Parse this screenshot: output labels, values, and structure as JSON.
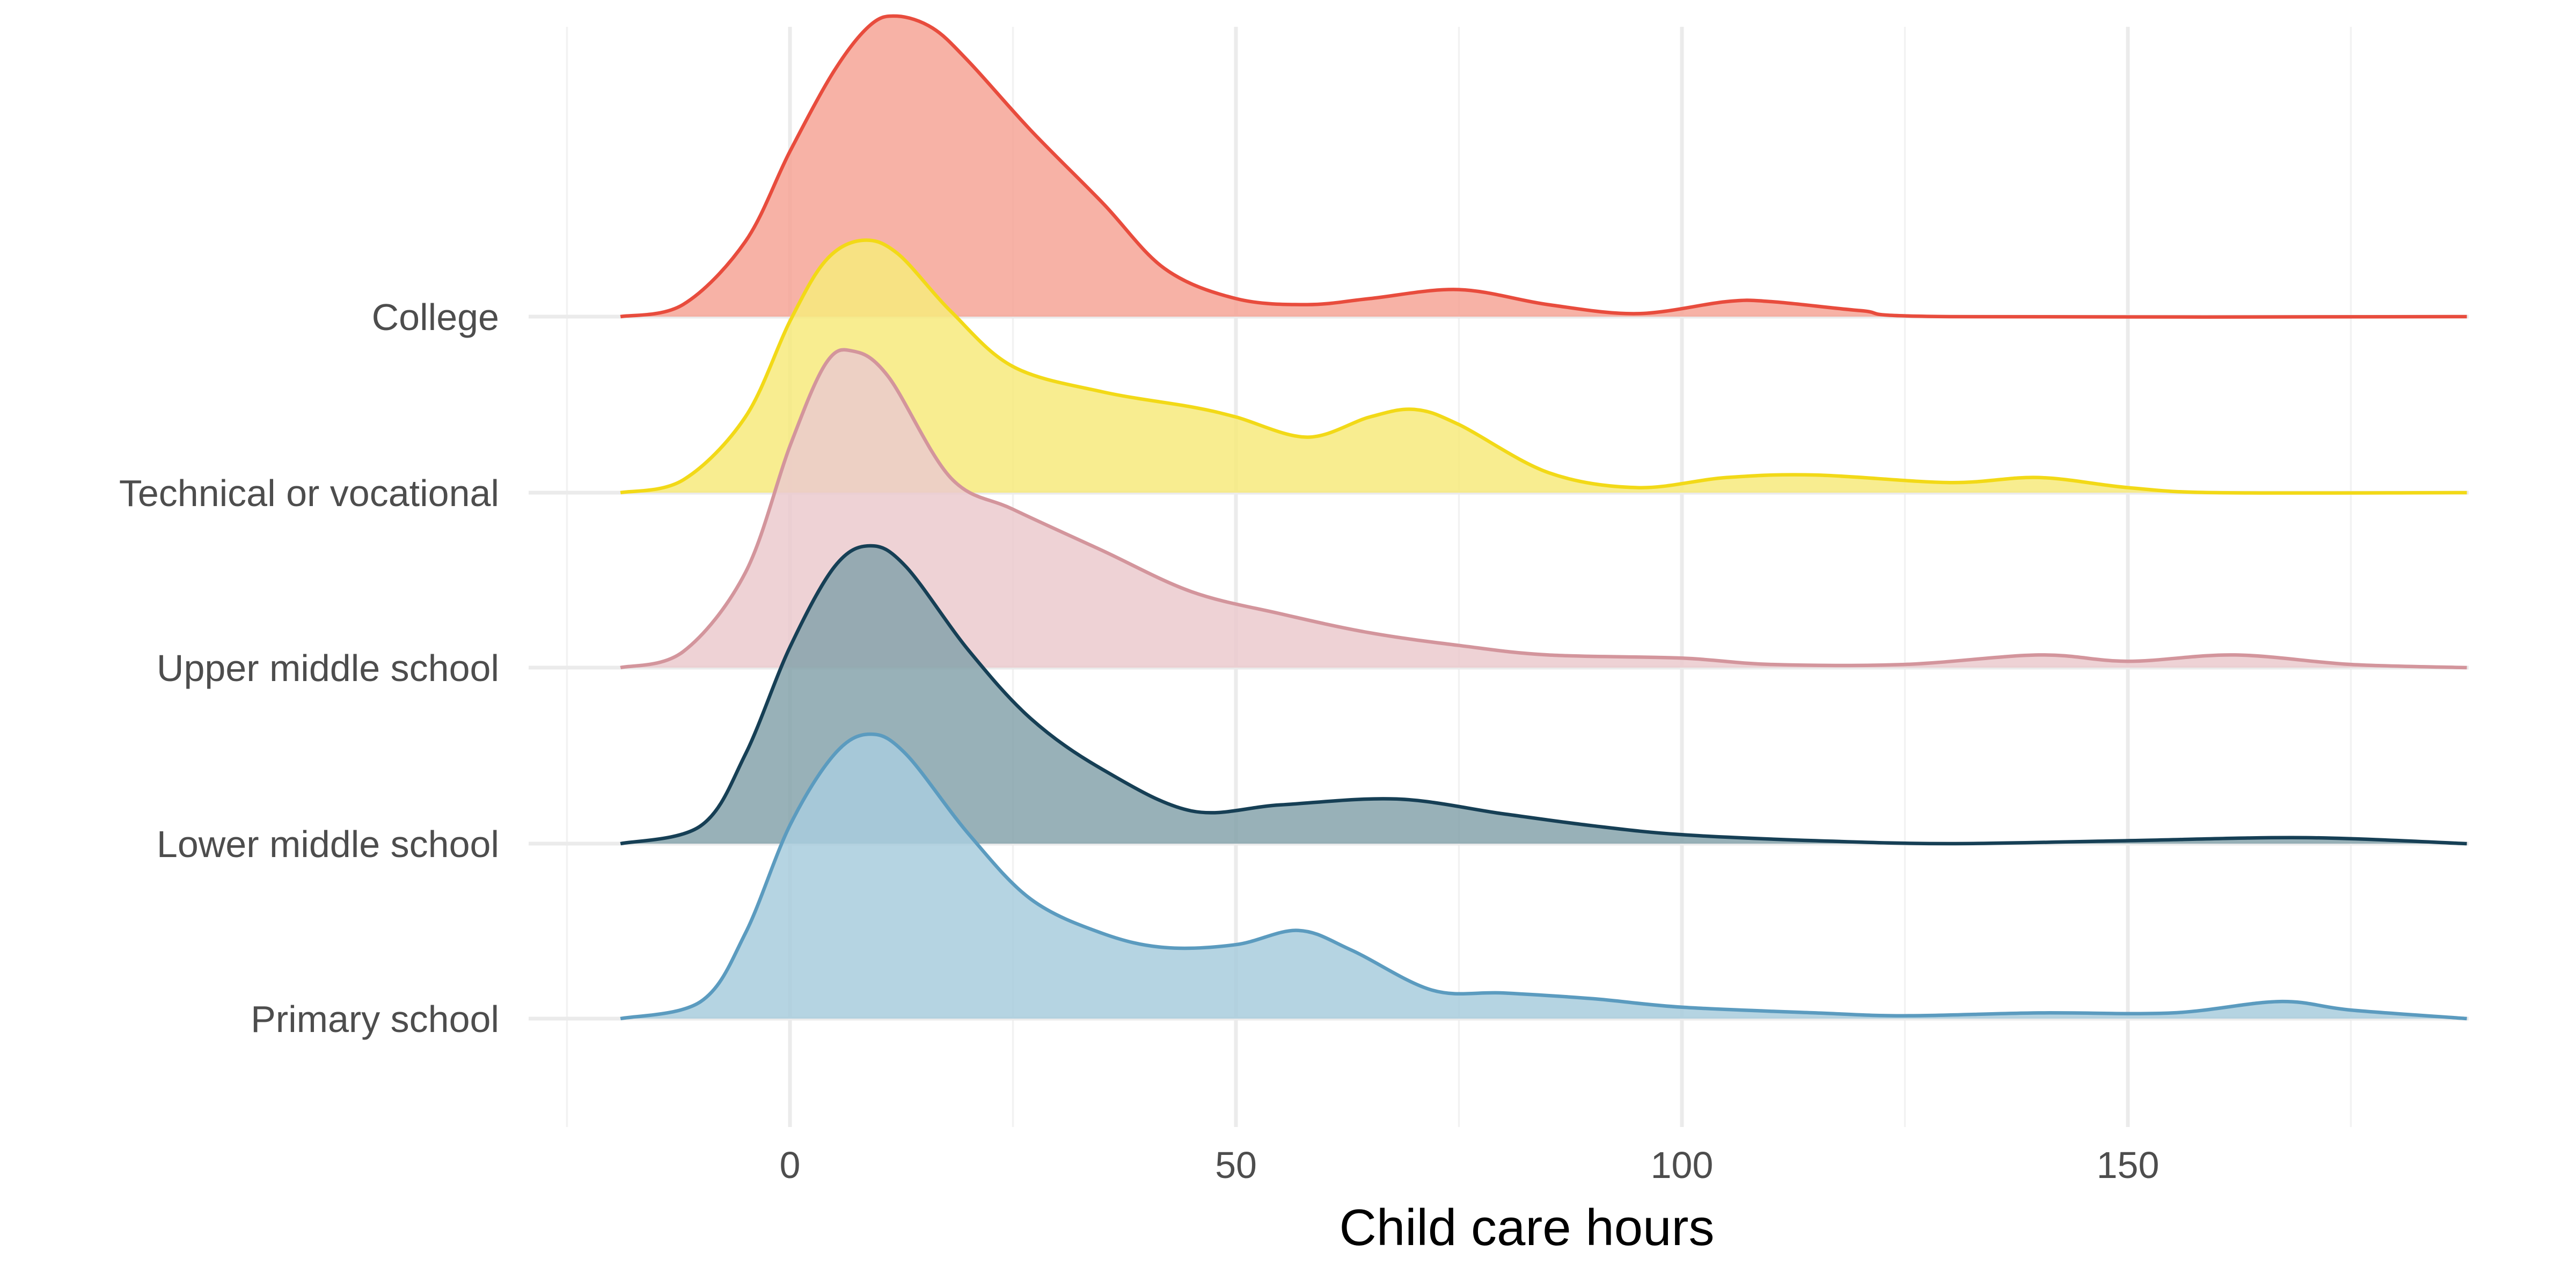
{
  "chart_data": {
    "type": "area",
    "subtype": "ridgeline",
    "title": "",
    "xlabel": "Child care hours",
    "ylabel": "",
    "xlim": [
      -25,
      195
    ],
    "x_ticks": [
      0,
      50,
      100,
      150
    ],
    "x_tick_labels": [
      "0",
      "50",
      "100",
      "150"
    ],
    "x_range_of_density": [
      -19,
      188
    ],
    "grid": true,
    "legend": "none",
    "series": [
      {
        "name": "Primary school",
        "color": "#5b9bbf",
        "fill": "#a8ccdd",
        "points": [
          [
            -19,
            0
          ],
          [
            -10,
            0.06
          ],
          [
            -5,
            0.3
          ],
          [
            0,
            0.68
          ],
          [
            5,
            0.93
          ],
          [
            9,
            1.0
          ],
          [
            13,
            0.93
          ],
          [
            20,
            0.65
          ],
          [
            27,
            0.42
          ],
          [
            35,
            0.3
          ],
          [
            42,
            0.25
          ],
          [
            50,
            0.26
          ],
          [
            57,
            0.31
          ],
          [
            63,
            0.24
          ],
          [
            72,
            0.1
          ],
          [
            80,
            0.09
          ],
          [
            90,
            0.07
          ],
          [
            100,
            0.04
          ],
          [
            115,
            0.02
          ],
          [
            125,
            0.01
          ],
          [
            140,
            0.02
          ],
          [
            155,
            0.02
          ],
          [
            167,
            0.06
          ],
          [
            175,
            0.03
          ],
          [
            188,
            0.0
          ]
        ]
      },
      {
        "name": "Lower middle school",
        "color": "#163f55",
        "fill": "#86a3ab",
        "points": [
          [
            -19,
            0
          ],
          [
            -10,
            0.06
          ],
          [
            -5,
            0.3
          ],
          [
            0,
            0.66
          ],
          [
            5,
            0.93
          ],
          [
            9,
            1.0
          ],
          [
            13,
            0.93
          ],
          [
            20,
            0.65
          ],
          [
            27,
            0.42
          ],
          [
            35,
            0.25
          ],
          [
            45,
            0.11
          ],
          [
            55,
            0.13
          ],
          [
            68,
            0.15
          ],
          [
            80,
            0.1
          ],
          [
            90,
            0.06
          ],
          [
            100,
            0.03
          ],
          [
            115,
            0.01
          ],
          [
            130,
            0.0
          ],
          [
            150,
            0.01
          ],
          [
            170,
            0.02
          ],
          [
            188,
            0.0
          ]
        ]
      },
      {
        "name": "Upper middle school",
        "color": "#d3959c",
        "fill": "#ebcace",
        "points": [
          [
            -19,
            0
          ],
          [
            -12,
            0.05
          ],
          [
            -5,
            0.3
          ],
          [
            0,
            0.7
          ],
          [
            4,
            0.96
          ],
          [
            7,
            1.0
          ],
          [
            11,
            0.92
          ],
          [
            18,
            0.6
          ],
          [
            25,
            0.5
          ],
          [
            35,
            0.37
          ],
          [
            45,
            0.24
          ],
          [
            55,
            0.17
          ],
          [
            65,
            0.11
          ],
          [
            75,
            0.07
          ],
          [
            85,
            0.04
          ],
          [
            100,
            0.03
          ],
          [
            110,
            0.01
          ],
          [
            125,
            0.01
          ],
          [
            140,
            0.04
          ],
          [
            150,
            0.02
          ],
          [
            162,
            0.04
          ],
          [
            175,
            0.01
          ],
          [
            188,
            0.0
          ]
        ]
      },
      {
        "name": "Technical or vocational",
        "color": "#f2d917",
        "fill": "#f7ea7d",
        "points": [
          [
            -19,
            0
          ],
          [
            -12,
            0.05
          ],
          [
            -5,
            0.3
          ],
          [
            0,
            0.68
          ],
          [
            4,
            0.92
          ],
          [
            8,
            1.0
          ],
          [
            12,
            0.95
          ],
          [
            18,
            0.72
          ],
          [
            25,
            0.5
          ],
          [
            35,
            0.4
          ],
          [
            45,
            0.34
          ],
          [
            50,
            0.3
          ],
          [
            58,
            0.22
          ],
          [
            65,
            0.3
          ],
          [
            70,
            0.33
          ],
          [
            75,
            0.27
          ],
          [
            85,
            0.08
          ],
          [
            95,
            0.02
          ],
          [
            105,
            0.06
          ],
          [
            115,
            0.07
          ],
          [
            130,
            0.04
          ],
          [
            140,
            0.06
          ],
          [
            150,
            0.02
          ],
          [
            160,
            0.0
          ],
          [
            188,
            0.0
          ]
        ]
      },
      {
        "name": "College",
        "color": "#e84c3d",
        "fill": "#f6a596",
        "points": [
          [
            -19,
            0
          ],
          [
            -12,
            0.04
          ],
          [
            -5,
            0.25
          ],
          [
            0,
            0.55
          ],
          [
            5,
            0.82
          ],
          [
            9,
            0.97
          ],
          [
            12,
            1.0
          ],
          [
            16,
            0.96
          ],
          [
            20,
            0.85
          ],
          [
            27,
            0.62
          ],
          [
            35,
            0.38
          ],
          [
            42,
            0.16
          ],
          [
            50,
            0.06
          ],
          [
            58,
            0.04
          ],
          [
            65,
            0.06
          ],
          [
            75,
            0.09
          ],
          [
            85,
            0.04
          ],
          [
            95,
            0.01
          ],
          [
            105,
            0.05
          ],
          [
            110,
            0.05
          ],
          [
            120,
            0.02
          ],
          [
            130,
            0.0
          ],
          [
            188,
            0.0
          ]
        ]
      }
    ]
  }
}
